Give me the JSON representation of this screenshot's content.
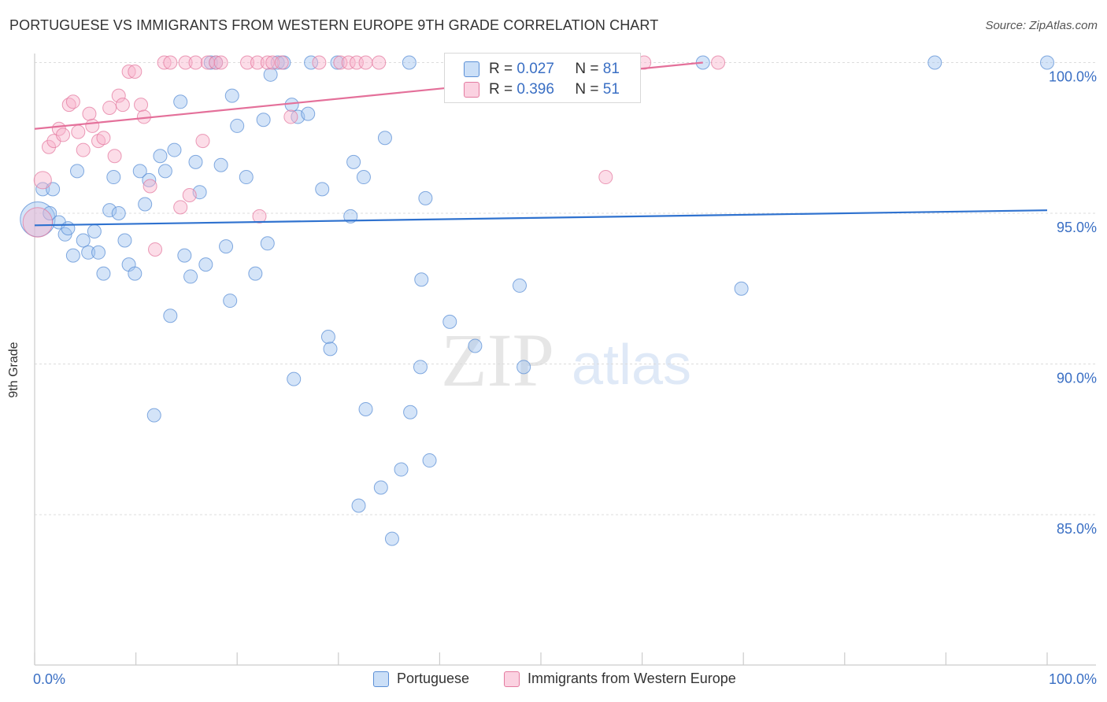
{
  "title": "PORTUGUESE VS IMMIGRANTS FROM WESTERN EUROPE 9TH GRADE CORRELATION CHART",
  "source": "Source: ZipAtlas.com",
  "watermark": {
    "zip": "ZIP",
    "atlas": "atlas"
  },
  "colors": {
    "blue": "#5b8fd6",
    "blue_fill": "rgba(160,196,240,0.45)",
    "blue_line": "#2f72cf",
    "pink": "#e47ba0",
    "pink_fill": "rgba(248,180,205,0.45)",
    "pink_line": "#e4709a",
    "grid": "#dddddd",
    "axis_label": "#3a6fc4"
  },
  "legend": {
    "r_label": "R =",
    "n_label": "N =",
    "series1": {
      "r": "0.027",
      "n": "81"
    },
    "series2": {
      "r": "0.396",
      "n": "51"
    }
  },
  "chart_data": {
    "type": "scatter",
    "ylabel": "9th Grade",
    "xlim": [
      0,
      100
    ],
    "ylim": [
      80.5,
      100.5
    ],
    "x_tick_labels": [
      "0.0%",
      "100.0%"
    ],
    "y_ticks": [
      85,
      90,
      95,
      100
    ],
    "y_tick_labels": [
      "85.0%",
      "90.0%",
      "95.0%",
      "100.0%"
    ],
    "series": [
      {
        "name": "Portuguese",
        "color": "#5b8fd6",
        "r": 0.027,
        "n": 81,
        "trend": {
          "x": [
            0,
            100
          ],
          "y": [
            94.6,
            95.1
          ]
        },
        "points": [
          [
            0.3,
            94.8,
            2.6
          ],
          [
            0.8,
            95.8,
            1
          ],
          [
            1.8,
            95.8,
            1
          ],
          [
            1.5,
            95.0,
            1
          ],
          [
            2.4,
            94.7,
            1
          ],
          [
            3.0,
            94.3,
            1
          ],
          [
            3.3,
            94.5,
            1
          ],
          [
            3.8,
            93.6,
            1
          ],
          [
            4.2,
            96.4,
            1
          ],
          [
            4.8,
            94.1,
            1
          ],
          [
            5.3,
            93.7,
            1
          ],
          [
            5.9,
            94.4,
            1
          ],
          [
            6.3,
            93.7,
            1
          ],
          [
            6.8,
            93.0,
            1
          ],
          [
            7.4,
            95.1,
            1
          ],
          [
            7.8,
            96.2,
            1
          ],
          [
            8.3,
            95.0,
            1
          ],
          [
            8.9,
            94.1,
            1
          ],
          [
            9.3,
            93.3,
            1
          ],
          [
            9.9,
            93.0,
            1
          ],
          [
            10.4,
            96.4,
            1
          ],
          [
            10.9,
            95.3,
            1
          ],
          [
            11.3,
            96.1,
            1
          ],
          [
            11.8,
            88.3,
            1
          ],
          [
            12.4,
            96.9,
            1
          ],
          [
            12.9,
            96.4,
            1
          ],
          [
            13.4,
            91.6,
            1
          ],
          [
            13.8,
            97.1,
            1
          ],
          [
            14.4,
            98.7,
            1
          ],
          [
            14.8,
            93.6,
            1
          ],
          [
            15.4,
            92.9,
            1
          ],
          [
            15.9,
            96.7,
            1
          ],
          [
            16.3,
            95.7,
            1
          ],
          [
            16.9,
            93.3,
            1
          ],
          [
            17.4,
            100.0,
            1
          ],
          [
            17.9,
            100.0,
            1
          ],
          [
            18.4,
            96.6,
            1
          ],
          [
            18.9,
            93.9,
            1
          ],
          [
            19.3,
            92.1,
            1
          ],
          [
            19.5,
            98.9,
            1
          ],
          [
            20.0,
            97.9,
            1
          ],
          [
            20.9,
            96.2,
            1
          ],
          [
            21.8,
            93.0,
            1
          ],
          [
            22.6,
            98.1,
            1
          ],
          [
            23.0,
            94.0,
            1
          ],
          [
            23.3,
            99.6,
            1
          ],
          [
            24.0,
            100.0,
            1
          ],
          [
            24.6,
            100.0,
            1
          ],
          [
            25.4,
            98.6,
            1
          ],
          [
            26.0,
            98.2,
            1
          ],
          [
            27.0,
            98.3,
            1
          ],
          [
            27.3,
            100.0,
            1
          ],
          [
            25.6,
            89.5,
            1
          ],
          [
            28.4,
            95.8,
            1
          ],
          [
            29.0,
            90.9,
            1
          ],
          [
            29.2,
            90.5,
            1
          ],
          [
            29.9,
            100.0,
            1
          ],
          [
            31.2,
            94.9,
            1
          ],
          [
            31.5,
            96.7,
            1
          ],
          [
            32.0,
            85.3,
            1
          ],
          [
            32.5,
            96.2,
            1
          ],
          [
            32.7,
            88.5,
            1
          ],
          [
            34.2,
            85.9,
            1
          ],
          [
            34.6,
            97.5,
            1
          ],
          [
            35.3,
            84.2,
            1
          ],
          [
            36.2,
            86.5,
            1
          ],
          [
            37.0,
            100.0,
            1
          ],
          [
            37.1,
            88.4,
            1
          ],
          [
            38.1,
            89.9,
            1
          ],
          [
            38.2,
            92.8,
            1
          ],
          [
            38.6,
            95.5,
            1
          ],
          [
            39.0,
            86.8,
            1
          ],
          [
            41.0,
            91.4,
            1
          ],
          [
            43.5,
            90.6,
            1
          ],
          [
            47.9,
            92.6,
            1
          ],
          [
            48.3,
            89.9,
            1
          ],
          [
            56.0,
            100.0,
            1
          ],
          [
            66.0,
            100.0,
            1
          ],
          [
            69.8,
            92.5,
            1
          ],
          [
            88.9,
            100.0,
            1
          ],
          [
            100.0,
            100.0,
            1
          ]
        ]
      },
      {
        "name": "Immigrants from Western Europe",
        "color": "#e47ba0",
        "r": 0.396,
        "n": 51,
        "trend": {
          "x": [
            0,
            66
          ],
          "y": [
            97.8,
            100.0
          ]
        },
        "points": [
          [
            0.3,
            94.7,
            2.2
          ],
          [
            0.8,
            96.1,
            1.3
          ],
          [
            1.4,
            97.2,
            1
          ],
          [
            1.9,
            97.4,
            1
          ],
          [
            2.4,
            97.8,
            1
          ],
          [
            2.8,
            97.6,
            1
          ],
          [
            3.4,
            98.6,
            1
          ],
          [
            3.8,
            98.7,
            1
          ],
          [
            4.3,
            97.7,
            1
          ],
          [
            4.8,
            97.1,
            1
          ],
          [
            5.4,
            98.3,
            1
          ],
          [
            5.7,
            97.9,
            1
          ],
          [
            6.3,
            97.4,
            1
          ],
          [
            6.8,
            97.5,
            1
          ],
          [
            7.4,
            98.5,
            1
          ],
          [
            7.9,
            96.9,
            1
          ],
          [
            8.3,
            98.9,
            1
          ],
          [
            8.7,
            98.6,
            1
          ],
          [
            9.3,
            99.7,
            1
          ],
          [
            9.9,
            99.7,
            1
          ],
          [
            10.5,
            98.6,
            1
          ],
          [
            10.8,
            98.2,
            1
          ],
          [
            11.4,
            95.9,
            1
          ],
          [
            11.9,
            93.8,
            1
          ],
          [
            12.8,
            100.0,
            1
          ],
          [
            13.4,
            100.0,
            1
          ],
          [
            14.4,
            95.2,
            1
          ],
          [
            14.9,
            100.0,
            1
          ],
          [
            15.3,
            95.6,
            1
          ],
          [
            15.9,
            100.0,
            1
          ],
          [
            16.6,
            97.4,
            1
          ],
          [
            17.1,
            100.0,
            1
          ],
          [
            17.9,
            100.0,
            1
          ],
          [
            18.4,
            100.0,
            1
          ],
          [
            21.0,
            100.0,
            1
          ],
          [
            22.0,
            100.0,
            1
          ],
          [
            22.2,
            94.9,
            1
          ],
          [
            23.0,
            100.0,
            1
          ],
          [
            23.5,
            100.0,
            1
          ],
          [
            24.4,
            100.0,
            1
          ],
          [
            25.3,
            98.2,
            1
          ],
          [
            28.1,
            100.0,
            1
          ],
          [
            30.2,
            100.0,
            1
          ],
          [
            31.0,
            100.0,
            1
          ],
          [
            31.8,
            100.0,
            1
          ],
          [
            32.7,
            100.0,
            1
          ],
          [
            34.0,
            100.0,
            1
          ],
          [
            41.5,
            100.0,
            1
          ],
          [
            56.4,
            96.2,
            1
          ],
          [
            60.2,
            100.0,
            1
          ],
          [
            67.5,
            100.0,
            1
          ]
        ]
      }
    ]
  }
}
